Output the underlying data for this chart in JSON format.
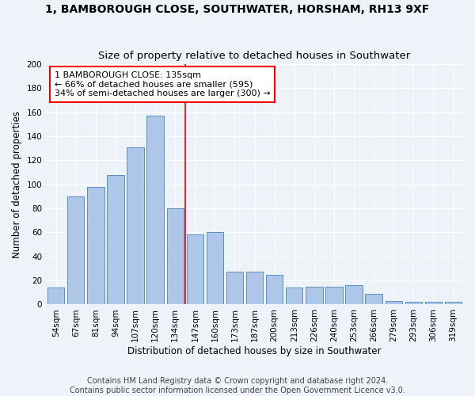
{
  "title": "1, BAMBOROUGH CLOSE, SOUTHWATER, HORSHAM, RH13 9XF",
  "subtitle": "Size of property relative to detached houses in Southwater",
  "xlabel": "Distribution of detached houses by size in Southwater",
  "ylabel": "Number of detached properties",
  "categories": [
    "54sqm",
    "67sqm",
    "81sqm",
    "94sqm",
    "107sqm",
    "120sqm",
    "134sqm",
    "147sqm",
    "160sqm",
    "173sqm",
    "187sqm",
    "200sqm",
    "213sqm",
    "226sqm",
    "240sqm",
    "253sqm",
    "266sqm",
    "279sqm",
    "293sqm",
    "306sqm",
    "319sqm"
  ],
  "values": [
    14,
    90,
    98,
    108,
    131,
    157,
    80,
    58,
    60,
    27,
    27,
    25,
    14,
    15,
    15,
    16,
    9,
    3,
    2,
    2,
    2
  ],
  "bar_color": "#aec6e8",
  "bar_edge_color": "#5a8fc0",
  "annotation_text": "1 BAMBOROUGH CLOSE: 135sqm\n← 66% of detached houses are smaller (595)\n34% of semi-detached houses are larger (300) →",
  "vline_x_index": 6,
  "vline_color": "red",
  "annotation_box_color": "white",
  "annotation_box_edge_color": "red",
  "ylim": [
    0,
    200
  ],
  "yticks": [
    0,
    20,
    40,
    60,
    80,
    100,
    120,
    140,
    160,
    180,
    200
  ],
  "footer_line1": "Contains HM Land Registry data © Crown copyright and database right 2024.",
  "footer_line2": "Contains public sector information licensed under the Open Government Licence v3.0.",
  "background_color": "#eef2f9",
  "grid_color": "white",
  "title_fontsize": 10,
  "subtitle_fontsize": 9.5,
  "axis_label_fontsize": 8.5,
  "tick_fontsize": 7.5,
  "annotation_fontsize": 8,
  "footer_fontsize": 7
}
